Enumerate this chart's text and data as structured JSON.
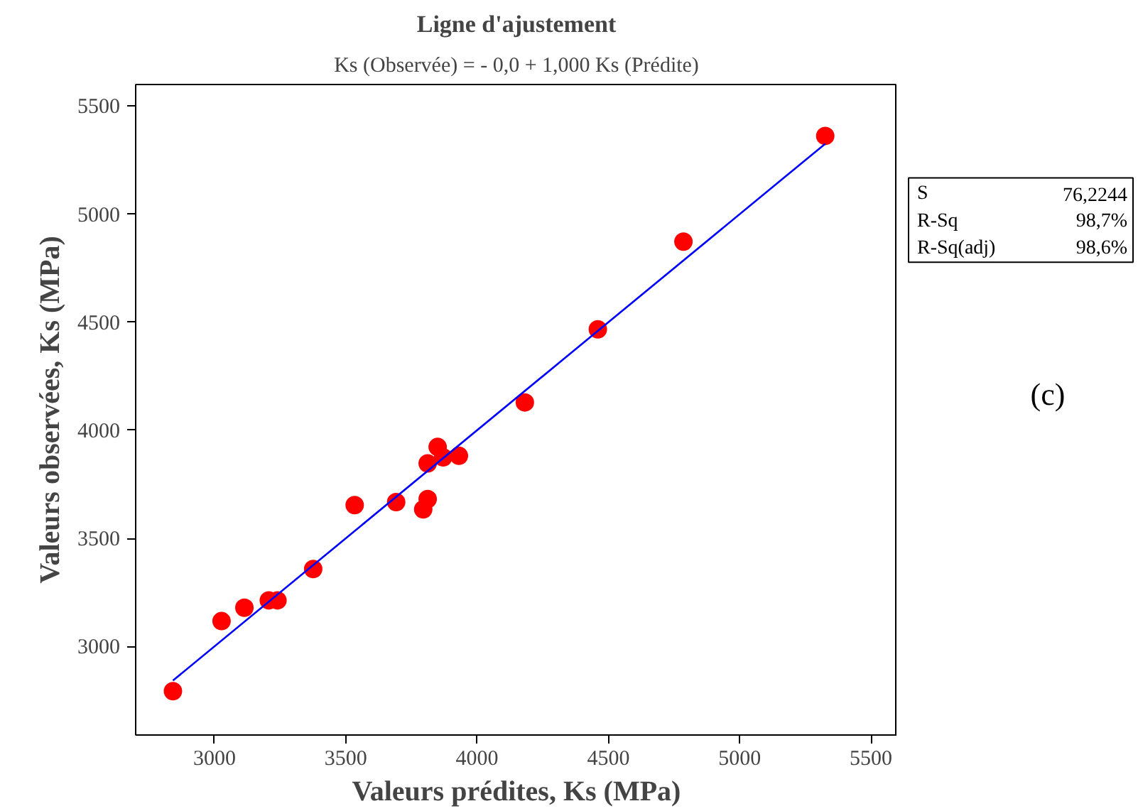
{
  "chart_data": {
    "type": "scatter",
    "title": "Ligne d'ajustement",
    "subtitle": "Ks (Observée) = - 0,0 + 1,000 Ks (Prédite)",
    "xlabel": "Valeurs prédites, Ks (MPa)",
    "ylabel": "Valeurs observées, Ks (MPa)",
    "xlim": [
      2700,
      5600
    ],
    "ylim": [
      2590,
      5600
    ],
    "xticks": [
      3000,
      3500,
      4000,
      4500,
      5000,
      5500
    ],
    "yticks": [
      3000,
      3500,
      4000,
      4500,
      5000,
      5500
    ],
    "grid": false,
    "marker": "circle",
    "series": [
      {
        "color": "#ff0000",
        "x": [
          2842,
          3027,
          3114,
          3207,
          3240,
          3376,
          3534,
          3692,
          3795,
          3812,
          3812,
          3850,
          3871,
          3931,
          4182,
          4460,
          4786,
          5326
        ],
        "values": [
          2793,
          3117,
          3179,
          3213,
          3213,
          3358,
          3654,
          3668,
          3634,
          3682,
          3847,
          3923,
          3875,
          3882,
          4129,
          4467,
          4873,
          5362
        ]
      },
      {
        "type": "line",
        "color": "#0000ff",
        "marker": "none",
        "line_style": "solid",
        "x": [
          2842,
          5326
        ],
        "values": [
          2842,
          5326
        ]
      }
    ],
    "annotations": [
      "S 76,2244",
      "R-Sq 98,7%",
      "R-Sq(adj) 98,6%",
      "(c)"
    ]
  }
}
